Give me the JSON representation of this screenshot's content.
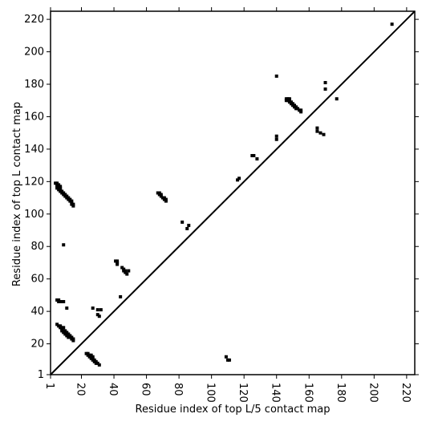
{
  "chart_data": {
    "type": "scatter",
    "x_label": "Residue index of top L/5 contact map",
    "y_label": "Residue index of top L contact map",
    "xlim": [
      1,
      225
    ],
    "ylim": [
      1,
      225
    ],
    "xticks": [
      1,
      20,
      40,
      60,
      80,
      100,
      120,
      140,
      160,
      180,
      200,
      220
    ],
    "yticks": [
      1,
      20,
      40,
      60,
      80,
      100,
      120,
      140,
      160,
      180,
      200,
      220
    ],
    "color": "#000000",
    "diagonal": true,
    "x": [
      4,
      5,
      5,
      6,
      6,
      7,
      7,
      5,
      6,
      7,
      8,
      8,
      9,
      9,
      10,
      10,
      11,
      11,
      12,
      12,
      13,
      13,
      14,
      14,
      14,
      15,
      15,
      5,
      6,
      7,
      9,
      11,
      5,
      6,
      6,
      7,
      8,
      9,
      5,
      6,
      7,
      8,
      9,
      8,
      9,
      10,
      10,
      11,
      11,
      12,
      12,
      13,
      13,
      14,
      14,
      15,
      15,
      7,
      8,
      9,
      10,
      11,
      12,
      27,
      30,
      32,
      30,
      31,
      23,
      24,
      24,
      25,
      25,
      26,
      26,
      27,
      27,
      28,
      28,
      29,
      29,
      30,
      31,
      26,
      27,
      41,
      42,
      42,
      42,
      45,
      46,
      46,
      47,
      47,
      48,
      49,
      44,
      67,
      68,
      68,
      69,
      69,
      70,
      71,
      71,
      72,
      72,
      82,
      85,
      86,
      116,
      117,
      125,
      126,
      128,
      140,
      140,
      140,
      146,
      147,
      147,
      148,
      148,
      149,
      149,
      150,
      150,
      151,
      151,
      152,
      152,
      153,
      154,
      155,
      155,
      146,
      148,
      165,
      165,
      167,
      169,
      170,
      170,
      177,
      211,
      109,
      110,
      111
    ],
    "values": [
      119,
      119,
      118,
      118,
      117,
      117,
      116,
      116,
      115,
      115,
      114,
      113,
      113,
      112,
      112,
      111,
      111,
      110,
      110,
      109,
      109,
      108,
      108,
      107,
      106,
      106,
      105,
      117,
      116,
      114,
      81,
      42,
      47,
      47,
      46,
      46,
      46,
      46,
      32,
      31,
      31,
      30,
      30,
      29,
      28,
      28,
      27,
      27,
      26,
      26,
      25,
      25,
      24,
      24,
      23,
      23,
      22,
      30,
      28,
      27,
      26,
      25,
      24,
      42,
      41,
      41,
      38,
      37,
      14,
      14,
      13,
      13,
      12,
      12,
      11,
      11,
      10,
      10,
      9,
      9,
      8,
      8,
      7,
      13,
      12,
      71,
      71,
      70,
      69,
      67,
      66,
      65,
      65,
      64,
      63,
      65,
      49,
      113,
      113,
      112,
      112,
      111,
      110,
      110,
      109,
      109,
      108,
      95,
      91,
      93,
      121,
      122,
      136,
      136,
      134,
      185,
      148,
      146,
      171,
      171,
      170,
      170,
      169,
      169,
      168,
      168,
      167,
      167,
      166,
      166,
      165,
      165,
      164,
      164,
      163,
      170,
      171,
      153,
      151,
      150,
      149,
      181,
      177,
      171,
      217,
      12,
      10,
      10
    ]
  }
}
